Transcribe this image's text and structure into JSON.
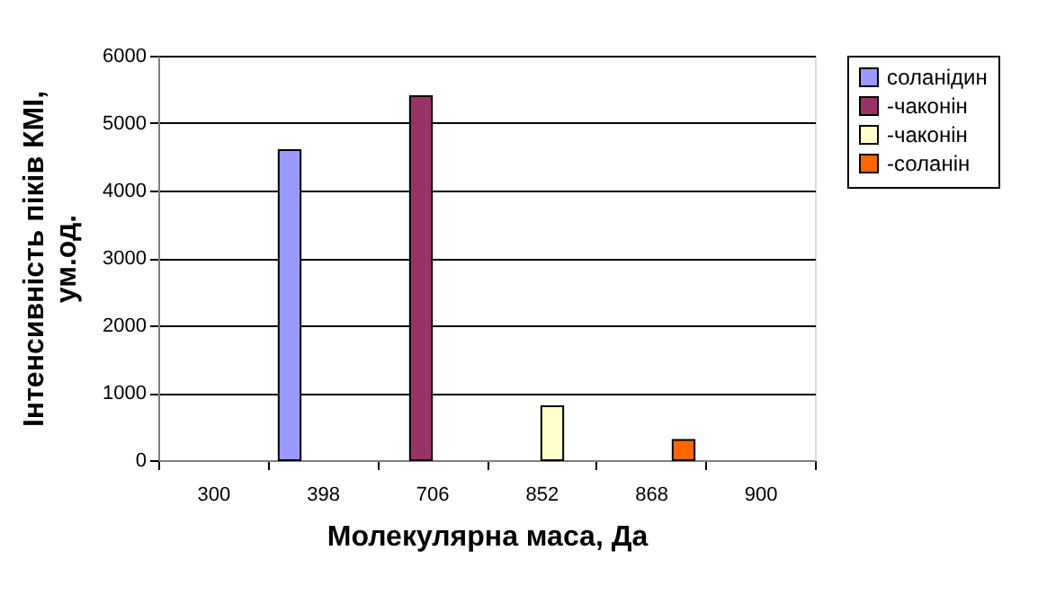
{
  "chart_data": {
    "type": "bar",
    "xlabel": "Молекулярна маса, Да",
    "ylabel": "Інтенсивність піків КМІ,\nум.од.",
    "categories": [
      "300",
      "398",
      "706",
      "852",
      "868",
      "900"
    ],
    "series": [
      {
        "name": "соланідин",
        "color": "#9999ff",
        "values": [
          null,
          4600,
          null,
          null,
          null,
          null
        ]
      },
      {
        "name": "  -чаконін",
        "color": "#993366",
        "values": [
          null,
          null,
          5400,
          null,
          null,
          null
        ]
      },
      {
        "name": "  -чаконін",
        "color": "#ffffcc",
        "values": [
          null,
          null,
          null,
          800,
          null,
          null
        ]
      },
      {
        "name": "  -соланін",
        "color": "#ff6600",
        "values": [
          null,
          null,
          null,
          null,
          300,
          null
        ]
      }
    ],
    "ylim": [
      0,
      6000
    ],
    "yticks": [
      0,
      1000,
      2000,
      3000,
      4000,
      5000,
      6000
    ],
    "grid": "y",
    "legend": "right"
  }
}
